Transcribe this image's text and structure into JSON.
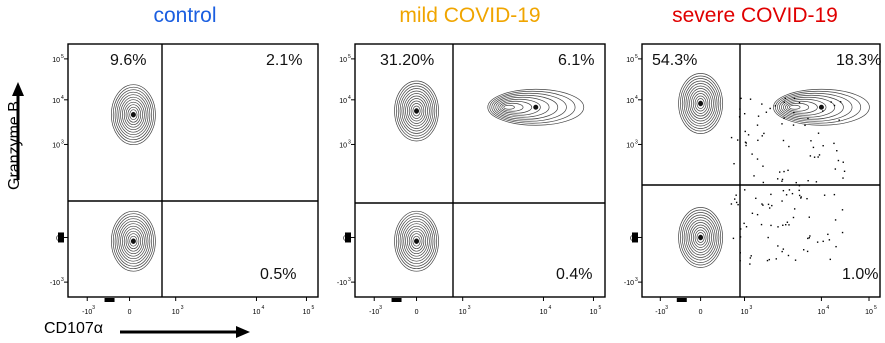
{
  "chart_data": [
    {
      "type": "contour",
      "title": "control",
      "title_color": "#1a5ee0",
      "xlabel": "CD107α",
      "ylabel": "Granzyme B",
      "x_ticks": [
        "-10",
        "0",
        "10",
        "10",
        "10"
      ],
      "y_ticks": [
        "10",
        "10",
        "10",
        "0",
        "-10"
      ],
      "quadrants": {
        "upper_left": "9.6%",
        "upper_right": "2.1%",
        "lower_right": "0.5%"
      },
      "populations": [
        {
          "name": "GzmB-hi CD107a-neg",
          "x": 0.3,
          "y": 3.4
        },
        {
          "name": "GzmB-neg CD107a-neg",
          "x": 0.3,
          "y": 0
        }
      ]
    },
    {
      "type": "contour",
      "title": "mild COVID-19",
      "title_color": "#f0a500",
      "x_ticks": [
        "-10",
        "0",
        "10",
        "10",
        "10"
      ],
      "y_ticks": [
        "10",
        "10",
        "10",
        "0",
        "-10"
      ],
      "quadrants": {
        "upper_left": "31.20%",
        "upper_right": "6.1%",
        "lower_right": "0.4%"
      },
      "populations": [
        {
          "name": "GzmB-hi CD107a-neg",
          "x": 0.2,
          "y": 3.5
        },
        {
          "name": "GzmB-hi CD107a-pos",
          "x": 3.3,
          "y": 3.6
        },
        {
          "name": "GzmB-neg CD107a-neg",
          "x": 0.2,
          "y": 0
        }
      ]
    },
    {
      "type": "contour",
      "title": "severe COVID-19",
      "title_color": "#e00000",
      "x_ticks": [
        "-10",
        "0",
        "10",
        "10",
        "10"
      ],
      "y_ticks": [
        "10",
        "10",
        "10",
        "0",
        "-10"
      ],
      "quadrants": {
        "upper_left": "54.3%",
        "upper_right": "18.3%",
        "lower_right": "1.0%"
      },
      "populations": [
        {
          "name": "GzmB-hi CD107a-neg",
          "x": 0.2,
          "y": 3.7
        },
        {
          "name": "GzmB-hi CD107a-pos",
          "x": 3.5,
          "y": 3.6
        },
        {
          "name": "GzmB-neg CD107a-neg",
          "x": 0.2,
          "y": 0.1
        }
      ]
    }
  ]
}
